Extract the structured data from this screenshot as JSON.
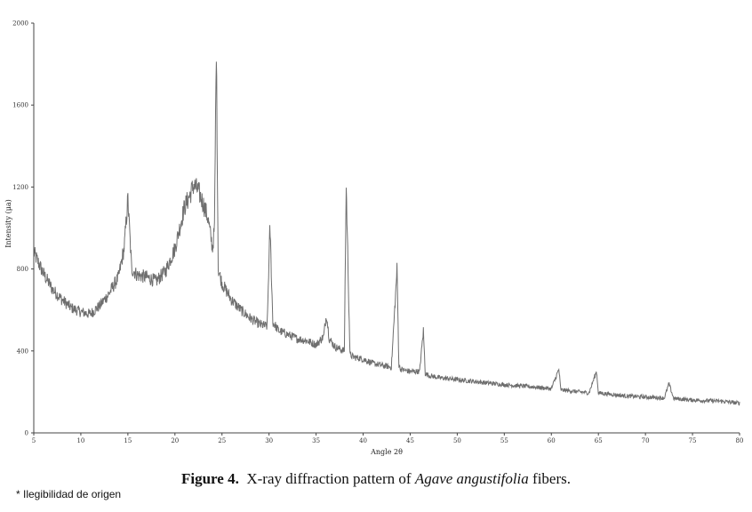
{
  "chart_data": {
    "type": "line",
    "xlabel": "Angle 2θ",
    "ylabel": "Intensity (μa)",
    "xlim": [
      5,
      80
    ],
    "ylim": [
      0,
      2000
    ],
    "x_ticks": [
      5,
      10,
      15,
      20,
      25,
      30,
      35,
      40,
      45,
      50,
      55,
      60,
      65,
      70,
      75,
      80
    ],
    "y_ticks": [
      0,
      400,
      800,
      1200,
      1600,
      2000
    ],
    "grid": false,
    "line_color": "#6e6e6e",
    "series": [
      {
        "x": [
          5,
          6,
          7,
          8,
          9,
          10,
          11,
          12,
          13,
          14,
          14.6,
          15,
          15.4,
          16,
          17,
          18,
          19,
          20,
          20.5,
          21,
          21.5,
          22,
          22.5,
          23,
          23.5,
          24,
          24.2,
          24.4,
          24.6,
          25,
          26,
          27,
          28,
          29,
          29.8,
          30.1,
          30.4,
          31,
          32,
          33,
          34,
          35,
          35.8,
          36.1,
          36.4,
          37,
          38,
          38.2,
          38.4,
          38.6,
          39,
          40,
          41,
          42,
          43,
          43.6,
          43.8,
          44,
          45,
          46,
          46.4,
          46.6,
          47,
          48,
          50,
          52,
          55,
          58,
          60,
          60.8,
          61,
          62,
          64,
          64.8,
          65,
          66,
          68,
          70,
          72,
          72.5,
          73,
          75,
          78,
          80
        ],
        "y": [
          880,
          780,
          700,
          650,
          610,
          590,
          580,
          620,
          680,
          760,
          900,
          1140,
          800,
          770,
          760,
          740,
          790,
          900,
          1000,
          1100,
          1150,
          1210,
          1180,
          1120,
          1050,
          900,
          1000,
          1890,
          800,
          730,
          650,
          600,
          560,
          530,
          520,
          1010,
          540,
          500,
          480,
          460,
          450,
          430,
          470,
          580,
          460,
          420,
          400,
          1210,
          800,
          380,
          370,
          360,
          340,
          330,
          320,
          800,
          330,
          310,
          300,
          300,
          500,
          290,
          280,
          270,
          260,
          250,
          235,
          225,
          215,
          310,
          210,
          205,
          195,
          300,
          195,
          190,
          180,
          175,
          170,
          240,
          168,
          160,
          155,
          145
        ]
      }
    ]
  },
  "caption": {
    "label": "Figure 4.",
    "text_before": "X-ray diffraction pattern of ",
    "species": "Agave angustifolia",
    "text_after": " fibers."
  },
  "footnote": "* Ilegibilidad de origen"
}
